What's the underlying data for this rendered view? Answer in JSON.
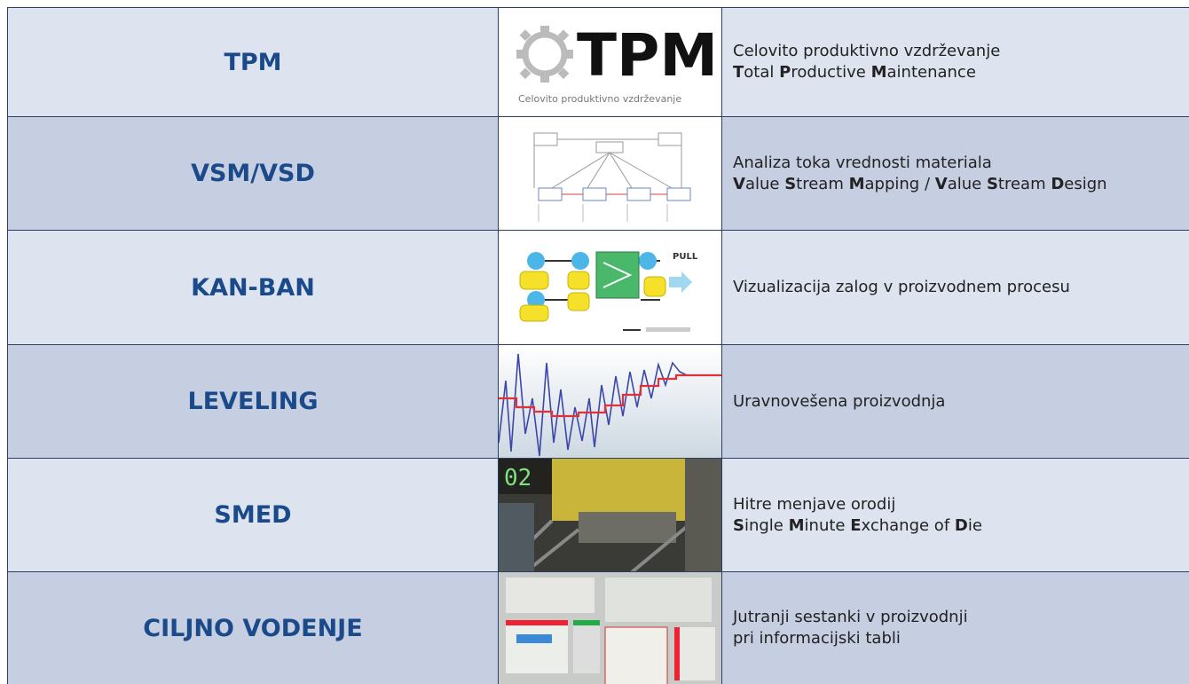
{
  "logo": {
    "title": "TPM",
    "subtitle": "Celovito produktivno vzdrževanje"
  },
  "kanban_label": "PULL",
  "rows": [
    {
      "title": "TPM",
      "description": [
        [
          {
            "text": "Celovito produktivno vzdrževanje"
          }
        ],
        [
          {
            "text": "T",
            "bold": true
          },
          {
            "text": "otal "
          },
          {
            "text": "P",
            "bold": true
          },
          {
            "text": "roductive "
          },
          {
            "text": "M",
            "bold": true
          },
          {
            "text": "aintenance"
          }
        ]
      ]
    },
    {
      "title": "VSM/VSD",
      "description": [
        [
          {
            "text": "Analiza toka vrednosti materiala"
          }
        ],
        [
          {
            "text": "V",
            "bold": true
          },
          {
            "text": "alue "
          },
          {
            "text": "S",
            "bold": true
          },
          {
            "text": "tream "
          },
          {
            "text": "M",
            "bold": true
          },
          {
            "text": "apping / "
          },
          {
            "text": "V",
            "bold": true
          },
          {
            "text": "alue "
          },
          {
            "text": "S",
            "bold": true
          },
          {
            "text": "tream "
          },
          {
            "text": "D",
            "bold": true
          },
          {
            "text": "esign"
          }
        ]
      ]
    },
    {
      "title": "KAN-BAN",
      "description": [
        [
          {
            "text": "Vizualizacija zalog v proizvodnem procesu"
          }
        ]
      ]
    },
    {
      "title": "LEVELING",
      "description": [
        [
          {
            "text": "Uravnovešena proizvodnja"
          }
        ]
      ]
    },
    {
      "title": "SMED",
      "description": [
        [
          {
            "text": "Hitre menjave orodij"
          }
        ],
        [
          {
            "text": "S",
            "bold": true
          },
          {
            "text": "ingle "
          },
          {
            "text": "M",
            "bold": true
          },
          {
            "text": "inute "
          },
          {
            "text": "E",
            "bold": true
          },
          {
            "text": "xchange of "
          },
          {
            "text": "D",
            "bold": true
          },
          {
            "text": "ie"
          }
        ]
      ]
    },
    {
      "title": "CILJNO VODENJE",
      "description": [
        [
          {
            "text": "Jutranji sestanki v proizvodnji"
          }
        ],
        [
          {
            "text": "pri informacijski tabli"
          }
        ]
      ]
    }
  ]
}
